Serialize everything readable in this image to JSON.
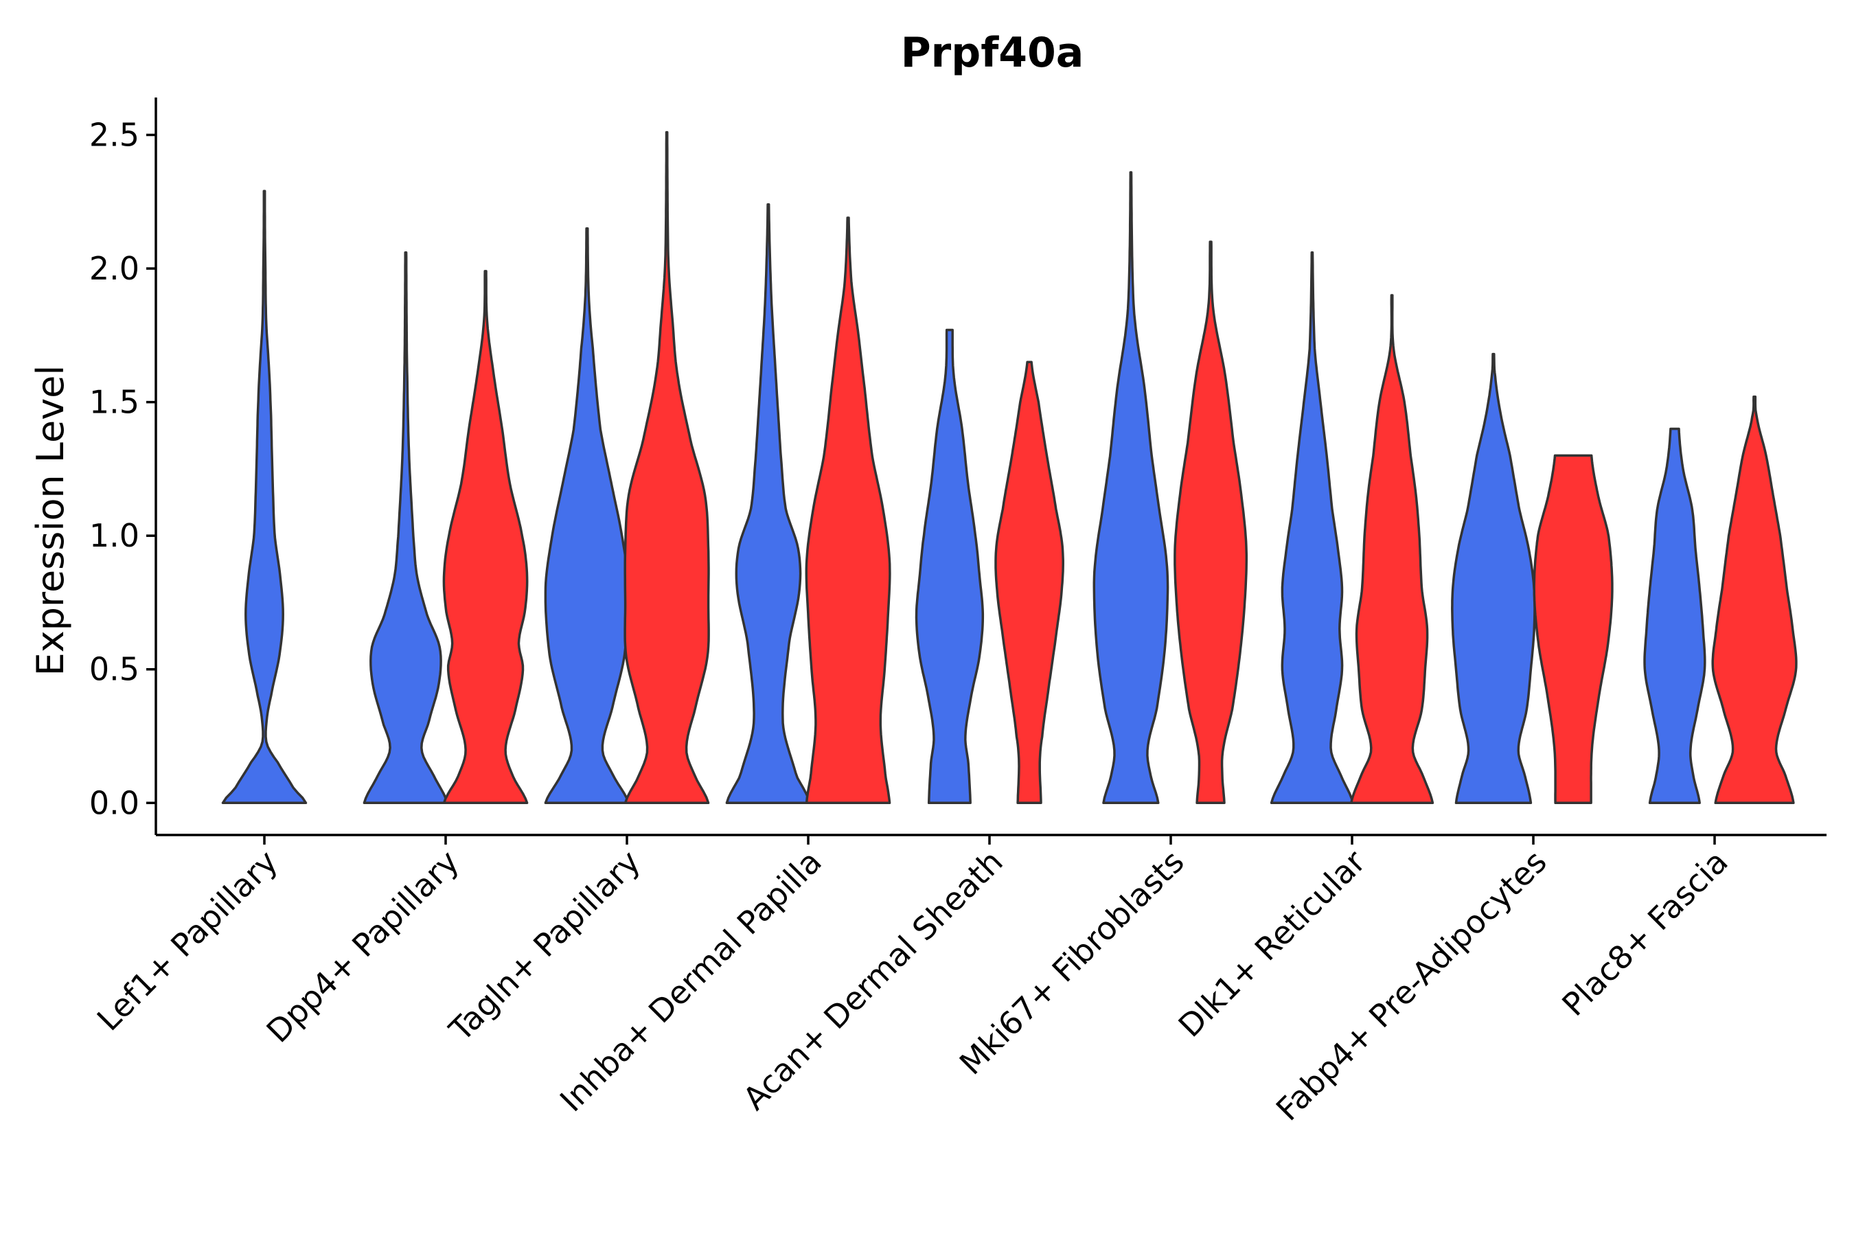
{
  "chart_data": {
    "type": "violin",
    "title": "Prpf40a",
    "ylabel": "Expression Level",
    "xlabel": "",
    "ylim": [
      -0.12,
      2.64
    ],
    "yticks": [
      0.0,
      0.5,
      1.0,
      1.5,
      2.0,
      2.5
    ],
    "ytick_labels": [
      "0.0",
      "0.5",
      "1.0",
      "1.5",
      "2.0",
      "2.5"
    ],
    "categories": [
      "Lef1+ Papillary",
      "Dpp4+ Papillary",
      "Tagln+ Papillary",
      "Inhba+ Dermal Papilla",
      "Acan+ Dermal Sheath",
      "Mki67+ Fibroblasts",
      "Dlk1+ Reticular",
      "Fabp4+ Pre-Adipocytes",
      "Plac8+ Fascia"
    ],
    "colors": {
      "blue": "#4470EC",
      "red": "#FF3333",
      "outline": "#333333"
    },
    "violins": [
      {
        "category": "Lef1+ Papillary",
        "color": "blue",
        "offset": 0,
        "halfwidth": 0.9,
        "profile": [
          [
            0,
            1
          ],
          [
            0.05,
            0.72
          ],
          [
            0.15,
            0.33
          ],
          [
            0.22,
            0.06
          ],
          [
            0.3,
            0.05
          ],
          [
            0.4,
            0.16
          ],
          [
            0.55,
            0.36
          ],
          [
            0.7,
            0.45
          ],
          [
            0.85,
            0.38
          ],
          [
            1.0,
            0.25
          ],
          [
            1.2,
            0.2
          ],
          [
            1.45,
            0.16
          ],
          [
            1.6,
            0.12
          ],
          [
            1.8,
            0.045
          ],
          [
            2.0,
            0.025
          ],
          [
            2.15,
            0.014
          ],
          [
            2.29,
            0.012
          ]
        ]
      },
      {
        "category": "Dpp4+ Papillary",
        "color": "blue",
        "offset": -0.22,
        "halfwidth": 0.9,
        "profile": [
          [
            0,
            1
          ],
          [
            0.1,
            0.68
          ],
          [
            0.2,
            0.38
          ],
          [
            0.3,
            0.55
          ],
          [
            0.45,
            0.8
          ],
          [
            0.58,
            0.82
          ],
          [
            0.7,
            0.52
          ],
          [
            0.85,
            0.27
          ],
          [
            1.0,
            0.18
          ],
          [
            1.3,
            0.08
          ],
          [
            1.6,
            0.035
          ],
          [
            1.8,
            0.02
          ],
          [
            2.06,
            0.012
          ]
        ]
      },
      {
        "category": "Dpp4+ Papillary",
        "color": "red",
        "offset": 0.22,
        "halfwidth": 0.9,
        "profile": [
          [
            0,
            1
          ],
          [
            0.1,
            0.66
          ],
          [
            0.2,
            0.48
          ],
          [
            0.35,
            0.72
          ],
          [
            0.5,
            0.9
          ],
          [
            0.6,
            0.8
          ],
          [
            0.72,
            0.95
          ],
          [
            0.85,
            1.0
          ],
          [
            1.0,
            0.88
          ],
          [
            1.2,
            0.58
          ],
          [
            1.4,
            0.4
          ],
          [
            1.6,
            0.2
          ],
          [
            1.8,
            0.04
          ],
          [
            1.99,
            0.015
          ]
        ]
      },
      {
        "category": "Tagln+ Papillary",
        "color": "blue",
        "offset": -0.22,
        "halfwidth": 0.9,
        "profile": [
          [
            0,
            1
          ],
          [
            0.1,
            0.64
          ],
          [
            0.2,
            0.37
          ],
          [
            0.35,
            0.6
          ],
          [
            0.55,
            0.9
          ],
          [
            0.8,
            1.0
          ],
          [
            1.0,
            0.84
          ],
          [
            1.2,
            0.58
          ],
          [
            1.4,
            0.32
          ],
          [
            1.7,
            0.14
          ],
          [
            1.9,
            0.04
          ],
          [
            2.15,
            0.014
          ]
        ]
      },
      {
        "category": "Tagln+ Papillary",
        "color": "red",
        "offset": 0.22,
        "halfwidth": 0.9,
        "profile": [
          [
            0,
            1
          ],
          [
            0.1,
            0.68
          ],
          [
            0.2,
            0.47
          ],
          [
            0.35,
            0.68
          ],
          [
            0.55,
            0.98
          ],
          [
            0.75,
            1.0
          ],
          [
            0.95,
            1.0
          ],
          [
            1.15,
            0.92
          ],
          [
            1.35,
            0.58
          ],
          [
            1.6,
            0.26
          ],
          [
            1.8,
            0.14
          ],
          [
            2.0,
            0.045
          ],
          [
            2.2,
            0.02
          ],
          [
            2.51,
            0.01
          ]
        ]
      },
      {
        "category": "Inhba+ Dermal Papilla",
        "color": "blue",
        "offset": -0.22,
        "halfwidth": 0.9,
        "profile": [
          [
            0,
            1
          ],
          [
            0.1,
            0.68
          ],
          [
            0.3,
            0.35
          ],
          [
            0.6,
            0.5
          ],
          [
            0.8,
            0.75
          ],
          [
            0.95,
            0.72
          ],
          [
            1.1,
            0.42
          ],
          [
            1.3,
            0.3
          ],
          [
            1.6,
            0.18
          ],
          [
            1.9,
            0.07
          ],
          [
            2.24,
            0.013
          ]
        ]
      },
      {
        "category": "Inhba+ Dermal Papilla",
        "color": "red",
        "offset": 0.22,
        "halfwidth": 0.9,
        "profile": [
          [
            0,
            1
          ],
          [
            0.1,
            0.9
          ],
          [
            0.3,
            0.78
          ],
          [
            0.5,
            0.88
          ],
          [
            0.7,
            0.96
          ],
          [
            0.9,
            1.0
          ],
          [
            1.1,
            0.84
          ],
          [
            1.3,
            0.58
          ],
          [
            1.55,
            0.4
          ],
          [
            1.75,
            0.25
          ],
          [
            1.95,
            0.08
          ],
          [
            2.19,
            0.015
          ]
        ]
      },
      {
        "category": "Acan+ Dermal Sheath",
        "color": "blue",
        "offset": -0.22,
        "halfwidth": 0.9,
        "profile": [
          [
            0,
            0.5
          ],
          [
            0.15,
            0.45
          ],
          [
            0.25,
            0.38
          ],
          [
            0.4,
            0.52
          ],
          [
            0.55,
            0.72
          ],
          [
            0.7,
            0.8
          ],
          [
            0.85,
            0.72
          ],
          [
            1.0,
            0.62
          ],
          [
            1.2,
            0.44
          ],
          [
            1.4,
            0.3
          ],
          [
            1.6,
            0.1
          ],
          [
            1.77,
            0.07
          ]
        ]
      },
      {
        "category": "Acan+ Dermal Sheath",
        "color": "red",
        "offset": 0.22,
        "halfwidth": 0.9,
        "profile": [
          [
            0,
            0.28
          ],
          [
            0.15,
            0.25
          ],
          [
            0.25,
            0.31
          ],
          [
            0.45,
            0.48
          ],
          [
            0.6,
            0.62
          ],
          [
            0.8,
            0.78
          ],
          [
            0.95,
            0.8
          ],
          [
            1.1,
            0.64
          ],
          [
            1.3,
            0.42
          ],
          [
            1.5,
            0.22
          ],
          [
            1.65,
            0.05
          ]
        ]
      },
      {
        "category": "Mki67+ Fibroblasts",
        "color": "blue",
        "offset": -0.22,
        "halfwidth": 0.9,
        "profile": [
          [
            0,
            0.66
          ],
          [
            0.1,
            0.48
          ],
          [
            0.2,
            0.4
          ],
          [
            0.35,
            0.62
          ],
          [
            0.55,
            0.8
          ],
          [
            0.75,
            0.88
          ],
          [
            0.9,
            0.86
          ],
          [
            1.1,
            0.68
          ],
          [
            1.3,
            0.5
          ],
          [
            1.55,
            0.33
          ],
          [
            1.8,
            0.1
          ],
          [
            2.0,
            0.035
          ],
          [
            2.36,
            0.01
          ]
        ]
      },
      {
        "category": "Mki67+ Fibroblasts",
        "color": "red",
        "offset": 0.22,
        "halfwidth": 0.9,
        "profile": [
          [
            0,
            0.33
          ],
          [
            0.1,
            0.28
          ],
          [
            0.2,
            0.3
          ],
          [
            0.35,
            0.52
          ],
          [
            0.55,
            0.7
          ],
          [
            0.75,
            0.82
          ],
          [
            0.95,
            0.86
          ],
          [
            1.15,
            0.74
          ],
          [
            1.35,
            0.55
          ],
          [
            1.6,
            0.35
          ],
          [
            1.85,
            0.06
          ],
          [
            2.1,
            0.015
          ]
        ]
      },
      {
        "category": "Dlk1+ Reticular",
        "color": "blue",
        "offset": -0.22,
        "halfwidth": 0.9,
        "profile": [
          [
            0,
            0.98
          ],
          [
            0.1,
            0.7
          ],
          [
            0.2,
            0.45
          ],
          [
            0.35,
            0.58
          ],
          [
            0.5,
            0.72
          ],
          [
            0.65,
            0.66
          ],
          [
            0.8,
            0.72
          ],
          [
            0.95,
            0.62
          ],
          [
            1.1,
            0.48
          ],
          [
            1.3,
            0.35
          ],
          [
            1.5,
            0.2
          ],
          [
            1.7,
            0.06
          ],
          [
            2.06,
            0.01
          ]
        ]
      },
      {
        "category": "Dlk1+ Reticular",
        "color": "red",
        "offset": 0.22,
        "halfwidth": 0.9,
        "profile": [
          [
            0,
            0.98
          ],
          [
            0.1,
            0.75
          ],
          [
            0.2,
            0.5
          ],
          [
            0.35,
            0.72
          ],
          [
            0.5,
            0.8
          ],
          [
            0.65,
            0.85
          ],
          [
            0.8,
            0.72
          ],
          [
            1.0,
            0.66
          ],
          [
            1.15,
            0.58
          ],
          [
            1.3,
            0.45
          ],
          [
            1.5,
            0.3
          ],
          [
            1.7,
            0.04
          ],
          [
            1.9,
            0.012
          ]
        ]
      },
      {
        "category": "Fabp4+ Pre-Adipocytes",
        "color": "blue",
        "offset": -0.22,
        "halfwidth": 0.9,
        "profile": [
          [
            0,
            0.9
          ],
          [
            0.1,
            0.76
          ],
          [
            0.2,
            0.6
          ],
          [
            0.35,
            0.8
          ],
          [
            0.5,
            0.9
          ],
          [
            0.65,
            0.98
          ],
          [
            0.8,
            0.98
          ],
          [
            0.95,
            0.85
          ],
          [
            1.1,
            0.62
          ],
          [
            1.3,
            0.4
          ],
          [
            1.45,
            0.18
          ],
          [
            1.6,
            0.04
          ],
          [
            1.68,
            0.015
          ]
        ]
      },
      {
        "category": "Fabp4+ Pre-Adipocytes",
        "color": "red",
        "offset": 0.22,
        "halfwidth": 0.9,
        "profile": [
          [
            0,
            0.43
          ],
          [
            0.2,
            0.45
          ],
          [
            0.4,
            0.62
          ],
          [
            0.6,
            0.84
          ],
          [
            0.8,
            0.94
          ],
          [
            1.0,
            0.85
          ],
          [
            1.15,
            0.6
          ],
          [
            1.3,
            0.44
          ]
        ]
      },
      {
        "category": "Plac8+ Fascia",
        "color": "blue",
        "offset": -0.22,
        "halfwidth": 0.9,
        "profile": [
          [
            0,
            0.6
          ],
          [
            0.1,
            0.45
          ],
          [
            0.2,
            0.38
          ],
          [
            0.35,
            0.55
          ],
          [
            0.5,
            0.72
          ],
          [
            0.65,
            0.68
          ],
          [
            0.8,
            0.6
          ],
          [
            0.95,
            0.5
          ],
          [
            1.1,
            0.42
          ],
          [
            1.25,
            0.2
          ],
          [
            1.4,
            0.1
          ]
        ]
      },
      {
        "category": "Plac8+ Fascia",
        "color": "red",
        "offset": 0.22,
        "halfwidth": 0.9,
        "profile": [
          [
            0,
            0.94
          ],
          [
            0.1,
            0.75
          ],
          [
            0.2,
            0.52
          ],
          [
            0.35,
            0.75
          ],
          [
            0.5,
            1.0
          ],
          [
            0.65,
            0.92
          ],
          [
            0.8,
            0.78
          ],
          [
            1.0,
            0.62
          ],
          [
            1.15,
            0.45
          ],
          [
            1.3,
            0.28
          ],
          [
            1.45,
            0.05
          ],
          [
            1.52,
            0.02
          ]
        ]
      }
    ]
  }
}
